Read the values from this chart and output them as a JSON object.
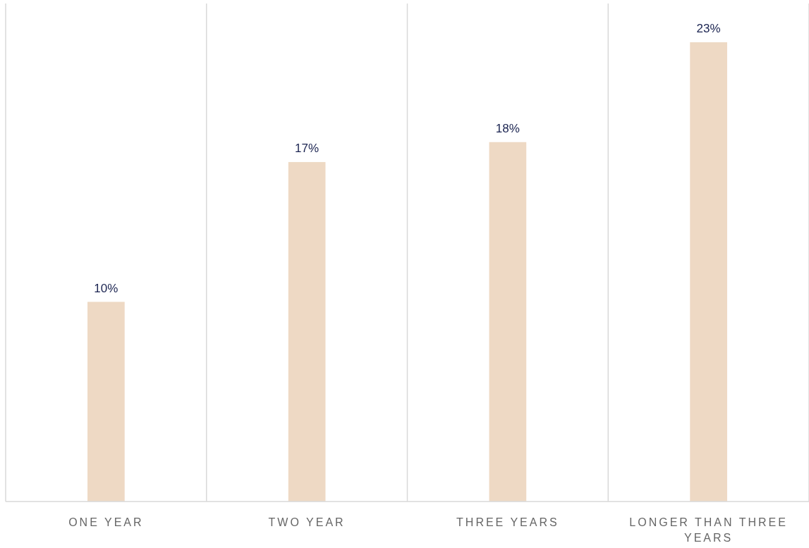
{
  "chart_data": {
    "type": "bar",
    "categories": [
      "ONE YEAR",
      "TWO YEAR",
      "THREE YEARS",
      "LONGER THAN THREE YEARS"
    ],
    "values": [
      10,
      17,
      18,
      23
    ],
    "color": "#eed9c4",
    "value_labels": [
      "10%",
      "17%",
      "18%",
      "23%"
    ],
    "tick_labels": "x",
    "grid": "x"
  }
}
